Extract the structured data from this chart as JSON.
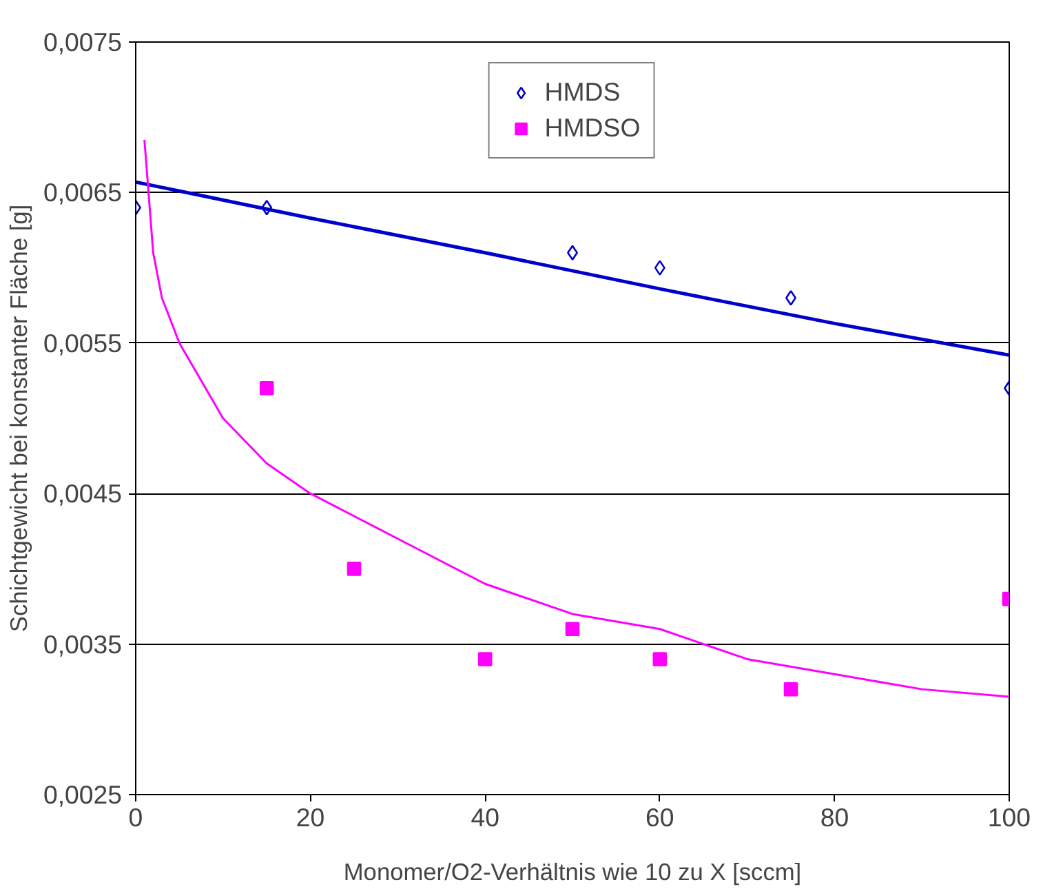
{
  "chart_data": {
    "type": "scatter",
    "xlabel": "Monomer/O2-Verhältnis wie 10 zu X [sccm]",
    "ylabel": "Schichtgewicht bei konstanter Fläche [g]",
    "xlim": [
      0,
      100
    ],
    "xticks": [
      0,
      20,
      40,
      60,
      80,
      100
    ],
    "ylim": [
      0.0025,
      0.0075
    ],
    "yticks": [
      {
        "value": 0.0025,
        "label": "0,0025"
      },
      {
        "value": 0.0035,
        "label": "0,0035"
      },
      {
        "value": 0.0045,
        "label": "0,0045"
      },
      {
        "value": 0.0055,
        "label": "0,0055"
      },
      {
        "value": 0.0065,
        "label": "0,0065"
      },
      {
        "value": 0.0075,
        "label": "0,0075"
      }
    ],
    "grid": "y",
    "legend": "top",
    "series": [
      {
        "type": "line",
        "color": "#0000cc",
        "marker": "none",
        "x": [
          0,
          20,
          40,
          60,
          80,
          100
        ],
        "values": [
          0.00657,
          0.00633,
          0.0061,
          0.00586,
          0.00563,
          0.00542
        ]
      },
      {
        "type": "line",
        "color": "#ff00ff",
        "marker": "none",
        "x": [
          1,
          2,
          3,
          5,
          10,
          15,
          20,
          30,
          40,
          50,
          60,
          70,
          80,
          90,
          100
        ],
        "values": [
          0.00685,
          0.0061,
          0.0058,
          0.0055,
          0.005,
          0.0047,
          0.0045,
          0.0042,
          0.0039,
          0.0037,
          0.0036,
          0.0034,
          0.0033,
          0.0032,
          0.00315
        ]
      },
      {
        "name": "HMDS",
        "color": "#0000cc",
        "marker": "diamond",
        "x": [
          0,
          15,
          50,
          60,
          75,
          100
        ],
        "values": [
          0.0064,
          0.0064,
          0.0061,
          0.006,
          0.0058,
          0.0052
        ]
      },
      {
        "name": "HMDSO",
        "color": "#ff00ff",
        "marker": "square",
        "x": [
          15,
          25,
          40,
          50,
          60,
          75,
          100
        ],
        "values": [
          0.0052,
          0.004,
          0.0034,
          0.0036,
          0.0034,
          0.0032,
          0.0038
        ]
      }
    ]
  }
}
